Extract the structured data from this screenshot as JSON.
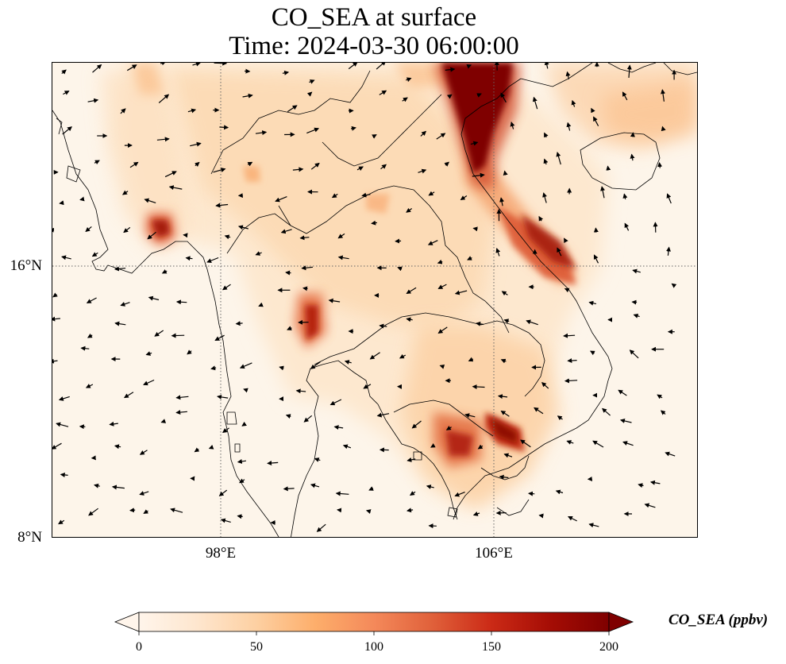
{
  "title": {
    "line1": "CO_SEA at surface",
    "line2": "Time: 2024-03-30 06:00:00"
  },
  "map": {
    "lat_ticks": [
      "16°N",
      "8°N"
    ],
    "lon_ticks": [
      "98°E",
      "106°E"
    ],
    "lon_extent": [
      93.1,
      111.9
    ],
    "lat_extent": [
      8,
      21.9
    ],
    "gridline_style": "dotted",
    "wind_vectors": "black arrows"
  },
  "colorbar": {
    "label": "CO_SEA (ppbv)",
    "min": 0,
    "max": 200,
    "ticks": [
      "0",
      "50",
      "100",
      "150",
      "200"
    ],
    "extend": "both",
    "colormap": [
      "#fff5eb",
      "#fee6ce",
      "#fdd0a2",
      "#fdae6b",
      "#fd8d3c",
      "#f16913",
      "#d94801",
      "#a63603",
      "#7f0000"
    ]
  },
  "colors": {
    "background": "#fdf5ea",
    "coastline": "#000000",
    "hotspot": "#7f0000"
  }
}
